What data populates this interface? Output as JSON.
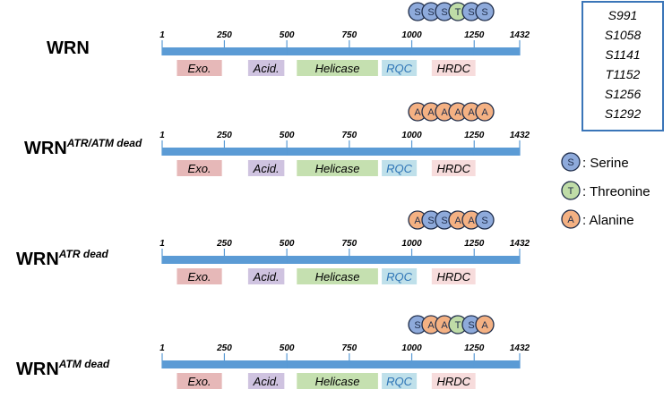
{
  "scale": {
    "min": 1,
    "max": 1432,
    "ticks": [
      1,
      250,
      500,
      750,
      1000,
      1250,
      1432
    ]
  },
  "domains": [
    {
      "key": "exo",
      "label": "Exo.",
      "start": 60,
      "end": 240,
      "color": "#e6b8b8"
    },
    {
      "key": "acid",
      "label": "Acid.",
      "start": 345,
      "end": 490,
      "color": "#cfc3e0"
    },
    {
      "key": "helicase",
      "label": "Helicase",
      "start": 540,
      "end": 865,
      "color": "#c5e0b0"
    },
    {
      "key": "rqc",
      "label": "RQC",
      "start": 880,
      "end": 1020,
      "color": "#bfe0ea"
    },
    {
      "key": "hrdc",
      "label": "HRDC",
      "start": 1080,
      "end": 1255,
      "color": "#f7dcdc"
    }
  ],
  "residue_colors": {
    "S": "#8eaadb",
    "T": "#bfdca7",
    "A": "#f4b183"
  },
  "constructs": [
    {
      "name": "WRN",
      "superscript": "",
      "residues": [
        "S",
        "S",
        "S",
        "T",
        "S",
        "S"
      ]
    },
    {
      "name": "WRN",
      "superscript": "ATR/ATM dead",
      "residues": [
        "A",
        "A",
        "A",
        "A",
        "A",
        "A"
      ]
    },
    {
      "name": "WRN",
      "superscript": "ATR dead",
      "residues": [
        "A",
        "S",
        "S",
        "A",
        "A",
        "S"
      ]
    },
    {
      "name": "WRN",
      "superscript": "ATM dead",
      "residues": [
        "S",
        "A",
        "A",
        "T",
        "S",
        "A"
      ]
    }
  ],
  "sites_box": [
    "S991",
    "S1058",
    "S1141",
    "T1152",
    "S1256",
    "S1292"
  ],
  "legend": [
    {
      "letter": "S",
      "label": ": Serine"
    },
    {
      "letter": "T",
      "label": ": Threonine"
    },
    {
      "letter": "A",
      "label": ": Alanine"
    }
  ]
}
